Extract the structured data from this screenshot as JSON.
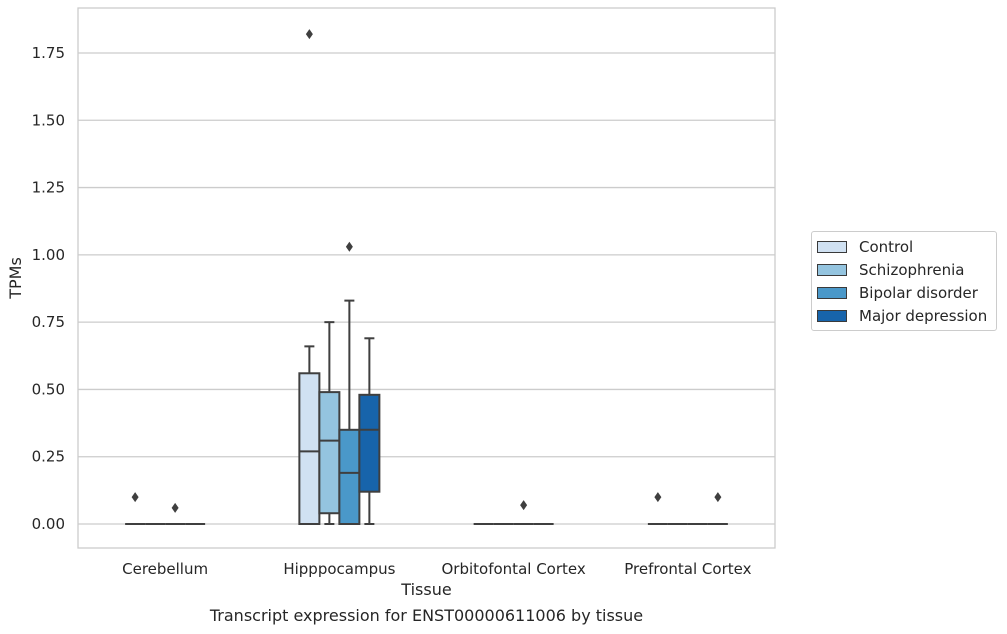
{
  "chart_data": {
    "type": "box",
    "caption": "Transcript expression for ENST00000611006 by tissue",
    "xlabel": "Tissue",
    "ylabel": "TPMs",
    "ylim": [
      -0.09,
      1.93
    ],
    "yticks": [
      "0.00",
      "0.25",
      "0.50",
      "0.75",
      "1.00",
      "1.25",
      "1.50",
      "1.75"
    ],
    "ytick_values": [
      0,
      0.25,
      0.5,
      0.75,
      1.0,
      1.25,
      1.5,
      1.75
    ],
    "grid": true,
    "legend_position": "right",
    "categories": [
      "Cerebellum",
      "Hipppocampus",
      "Orbitofontal Cortex",
      "Prefrontal Cortex"
    ],
    "series": [
      {
        "name": "Control",
        "color": "#d0e1f2",
        "boxes": [
          {
            "q1": 0,
            "median": 0,
            "q3": 0,
            "whisker_low": 0,
            "whisker_high": 0,
            "outliers": [
              0.1
            ]
          },
          {
            "q1": 0,
            "median": 0.27,
            "q3": 0.56,
            "whisker_low": 0,
            "whisker_high": 0.66,
            "outliers": [
              1.82
            ]
          },
          {
            "q1": 0,
            "median": 0,
            "q3": 0,
            "whisker_low": 0,
            "whisker_high": 0,
            "outliers": []
          },
          {
            "q1": 0,
            "median": 0,
            "q3": 0,
            "whisker_low": 0,
            "whisker_high": 0,
            "outliers": [
              0.1
            ]
          }
        ]
      },
      {
        "name": "Schizophrenia",
        "color": "#94c4df",
        "boxes": [
          {
            "q1": 0,
            "median": 0,
            "q3": 0,
            "whisker_low": 0,
            "whisker_high": 0,
            "outliers": []
          },
          {
            "q1": 0.04,
            "median": 0.31,
            "q3": 0.49,
            "whisker_low": 0,
            "whisker_high": 0.75,
            "outliers": []
          },
          {
            "q1": 0,
            "median": 0,
            "q3": 0,
            "whisker_low": 0,
            "whisker_high": 0,
            "outliers": []
          },
          {
            "q1": 0,
            "median": 0,
            "q3": 0,
            "whisker_low": 0,
            "whisker_high": 0,
            "outliers": []
          }
        ]
      },
      {
        "name": "Bipolar disorder",
        "color": "#4a98c9",
        "boxes": [
          {
            "q1": 0,
            "median": 0,
            "q3": 0,
            "whisker_low": 0,
            "whisker_high": 0,
            "outliers": [
              0.06
            ]
          },
          {
            "q1": 0,
            "median": 0.19,
            "q3": 0.35,
            "whisker_low": 0,
            "whisker_high": 0.83,
            "outliers": [
              1.03
            ]
          },
          {
            "q1": 0,
            "median": 0,
            "q3": 0,
            "whisker_low": 0,
            "whisker_high": 0,
            "outliers": [
              0.07
            ]
          },
          {
            "q1": 0,
            "median": 0,
            "q3": 0,
            "whisker_low": 0,
            "whisker_high": 0,
            "outliers": []
          }
        ]
      },
      {
        "name": "Major depression",
        "color": "#1764ab",
        "boxes": [
          {
            "q1": 0,
            "median": 0,
            "q3": 0,
            "whisker_low": 0,
            "whisker_high": 0,
            "outliers": []
          },
          {
            "q1": 0.12,
            "median": 0.35,
            "q3": 0.48,
            "whisker_low": 0,
            "whisker_high": 0.69,
            "outliers": []
          },
          {
            "q1": 0,
            "median": 0,
            "q3": 0,
            "whisker_low": 0,
            "whisker_high": 0,
            "outliers": []
          },
          {
            "q1": 0,
            "median": 0,
            "q3": 0,
            "whisker_low": 0,
            "whisker_high": 0,
            "outliers": [
              0.1
            ]
          }
        ]
      }
    ]
  }
}
